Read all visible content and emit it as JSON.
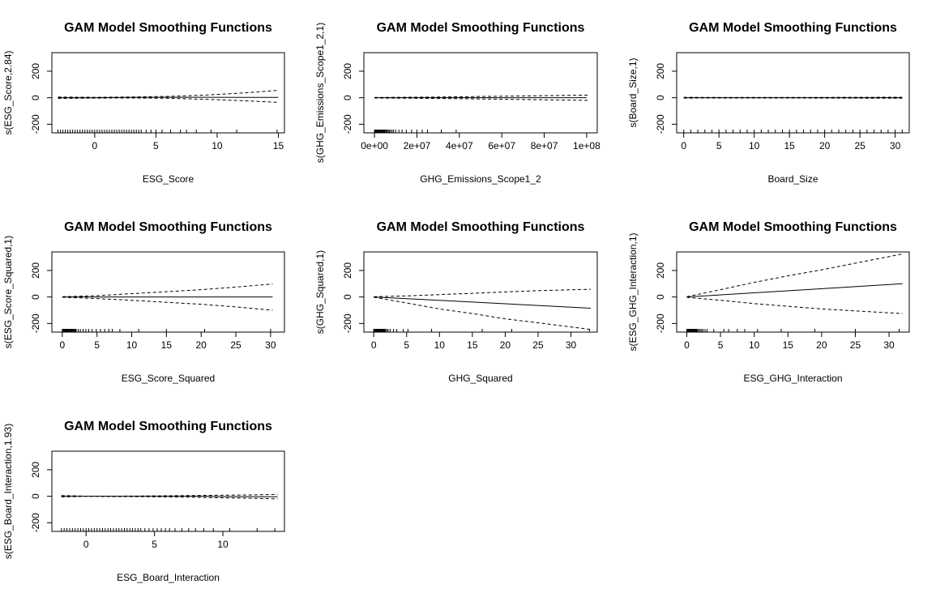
{
  "chart_data": [
    {
      "type": "line",
      "title": "GAM Model Smoothing Functions",
      "xlabel": "ESG_Score",
      "ylabel": "s(ESG_Score,2.84)",
      "xlim": [
        -3.5,
        15.5
      ],
      "ylim": [
        -265,
        340
      ],
      "xticks": [
        0,
        5,
        10,
        15
      ],
      "xtick_labels": [
        "0",
        "5",
        "10",
        "15"
      ],
      "yticks": [
        -200,
        0,
        200
      ],
      "ytick_labels": [
        "-200",
        "0",
        "200"
      ],
      "series": [
        {
          "name": "fit",
          "style": "solid",
          "x": [
            -3,
            0,
            3,
            6,
            9,
            12,
            15
          ],
          "y": [
            0,
            0,
            2,
            3,
            3,
            2,
            2
          ]
        },
        {
          "name": "upper",
          "style": "dashed",
          "x": [
            -3,
            0,
            3,
            6,
            9,
            12,
            15
          ],
          "y": [
            5,
            3,
            6,
            10,
            20,
            35,
            55
          ]
        },
        {
          "name": "lower",
          "style": "dashed",
          "x": [
            -3,
            0,
            3,
            6,
            9,
            12,
            15
          ],
          "y": [
            -5,
            -3,
            -2,
            -4,
            -12,
            -22,
            -35
          ]
        }
      ],
      "rug": [
        -3,
        -2.8,
        -2.6,
        -2.4,
        -2.2,
        -2,
        -1.8,
        -1.6,
        -1.4,
        -1.2,
        -1,
        -0.8,
        -0.6,
        -0.4,
        -0.2,
        0,
        0.2,
        0.4,
        0.6,
        0.8,
        1,
        1.2,
        1.4,
        1.6,
        1.8,
        2,
        2.2,
        2.4,
        2.6,
        2.8,
        3,
        3.2,
        3.4,
        3.6,
        3.8,
        4.2,
        4.6,
        5,
        5.5,
        6.2,
        7,
        7.5,
        8.3,
        9.5,
        11.6,
        14.9
      ]
    },
    {
      "type": "line",
      "title": "GAM Model Smoothing Functions",
      "xlabel": "GHG_Emissions_Scope1_2",
      "ylabel": "s(GHG_Emissions_Scope1_2,1)",
      "xlim": [
        -5000000,
        105000000
      ],
      "ylim": [
        -265,
        340
      ],
      "xticks": [
        0,
        20000000,
        40000000,
        60000000,
        80000000,
        100000000
      ],
      "xtick_labels": [
        "0e+00",
        "2e+07",
        "4e+07",
        "6e+07",
        "8e+07",
        "1e+08"
      ],
      "yticks": [
        -200,
        0,
        200
      ],
      "ytick_labels": [
        "-200",
        "0",
        "200"
      ],
      "series": [
        {
          "name": "fit",
          "style": "solid",
          "x": [
            0,
            100000000
          ],
          "y": [
            0,
            0
          ]
        },
        {
          "name": "upper",
          "style": "dashed",
          "x": [
            0,
            30000000,
            101000000
          ],
          "y": [
            2,
            5,
            20
          ]
        },
        {
          "name": "lower",
          "style": "dashed",
          "x": [
            0,
            30000000,
            101000000
          ],
          "y": [
            -2,
            -5,
            -20
          ]
        }
      ],
      "rug": [
        0,
        300000,
        600000,
        900000,
        1200000,
        1500000,
        1800000,
        2100000,
        2400000,
        2700000,
        3000000,
        3300000,
        3600000,
        3900000,
        4200000,
        4500000,
        4800000,
        5200000,
        5600000,
        6000000,
        6500000,
        7000000,
        7600000,
        8300000,
        9000000,
        10000000,
        11500000,
        13000000,
        15000000,
        17500000,
        20000000,
        22500000,
        25000000,
        31500000,
        38500000
      ]
    },
    {
      "type": "line",
      "title": "GAM Model Smoothing Functions",
      "xlabel": "Board_Size",
      "ylabel": "s(Board_Size,1)",
      "xlim": [
        -1,
        32
      ],
      "ylim": [
        -265,
        340
      ],
      "xticks": [
        0,
        5,
        10,
        15,
        20,
        25,
        30
      ],
      "xtick_labels": [
        "0",
        "5",
        "10",
        "15",
        "20",
        "25",
        "30"
      ],
      "yticks": [
        -200,
        0,
        200
      ],
      "ytick_labels": [
        "-200",
        "0",
        "200"
      ],
      "series": [
        {
          "name": "fit",
          "style": "solid",
          "x": [
            0,
            31
          ],
          "y": [
            0,
            0
          ]
        },
        {
          "name": "upper",
          "style": "dashed",
          "x": [
            0,
            4,
            15,
            31
          ],
          "y": [
            3,
            2,
            2,
            4
          ]
        },
        {
          "name": "lower",
          "style": "dashed",
          "x": [
            0,
            4,
            15,
            31
          ],
          "y": [
            -3,
            -2,
            -2,
            -4
          ]
        }
      ],
      "rug": [
        0,
        1,
        2,
        3,
        4,
        5,
        6,
        7,
        8,
        9,
        10,
        11,
        12,
        13,
        14,
        15,
        16,
        17,
        18,
        19,
        20,
        21,
        22,
        23,
        24,
        25,
        26,
        27,
        28,
        29,
        30,
        31
      ]
    },
    {
      "type": "line",
      "title": "GAM Model Smoothing Functions",
      "xlabel": "ESG_Score_Squared",
      "ylabel": "s(ESG_Score_Squared,1)",
      "xlim": [
        -1.5,
        32
      ],
      "ylim": [
        -265,
        340
      ],
      "xticks": [
        0,
        5,
        10,
        15,
        20,
        25,
        30
      ],
      "xtick_labels": [
        "0",
        "5",
        "10",
        "15",
        "20",
        "25",
        "30"
      ],
      "yticks": [
        -200,
        0,
        200
      ],
      "ytick_labels": [
        "-200",
        "0",
        "200"
      ],
      "series": [
        {
          "name": "fit",
          "style": "solid",
          "x": [
            0,
            30.3
          ],
          "y": [
            0,
            0
          ]
        },
        {
          "name": "upper",
          "style": "dashed",
          "x": [
            0,
            5,
            10,
            15,
            20,
            25,
            30.3
          ],
          "y": [
            2,
            10,
            25,
            40,
            55,
            75,
            98
          ]
        },
        {
          "name": "lower",
          "style": "dashed",
          "x": [
            0,
            5,
            10,
            15,
            20,
            25,
            30.3
          ],
          "y": [
            -2,
            -12,
            -25,
            -40,
            -55,
            -75,
            -100
          ]
        }
      ],
      "rug": [
        0,
        0.1,
        0.2,
        0.3,
        0.4,
        0.5,
        0.6,
        0.7,
        0.8,
        0.9,
        1,
        1.1,
        1.2,
        1.3,
        1.4,
        1.5,
        1.6,
        1.7,
        1.8,
        1.9,
        2,
        2.3,
        2.6,
        3,
        3.4,
        3.8,
        4.3,
        4.9,
        5.5,
        6.1,
        6.7,
        7.2,
        8.3,
        11,
        15,
        20.5,
        30
      ]
    },
    {
      "type": "line",
      "title": "GAM Model Smoothing Functions",
      "xlabel": "GHG_Squared",
      "ylabel": "s(GHG_Squared,1)",
      "xlim": [
        -1.5,
        34
      ],
      "ylim": [
        -265,
        340
      ],
      "xticks": [
        0,
        5,
        10,
        15,
        20,
        25,
        30
      ],
      "xtick_labels": [
        "0",
        "5",
        "10",
        "15",
        "20",
        "25",
        "30"
      ],
      "yticks": [
        -200,
        0,
        200
      ],
      "ytick_labels": [
        "-200",
        "0",
        "200"
      ],
      "series": [
        {
          "name": "fit",
          "style": "solid",
          "x": [
            0,
            33
          ],
          "y": [
            0,
            -85
          ]
        },
        {
          "name": "upper",
          "style": "dashed",
          "x": [
            0,
            5,
            10,
            15,
            20,
            25,
            33
          ],
          "y": [
            2,
            8,
            18,
            28,
            38,
            48,
            58
          ]
        },
        {
          "name": "lower",
          "style": "dashed",
          "x": [
            0,
            5,
            10,
            15,
            20,
            25,
            33
          ],
          "y": [
            -2,
            -45,
            -90,
            -125,
            -165,
            -195,
            -245
          ]
        }
      ],
      "rug": [
        0,
        0.1,
        0.2,
        0.3,
        0.4,
        0.5,
        0.6,
        0.7,
        0.8,
        0.9,
        1,
        1.1,
        1.2,
        1.3,
        1.4,
        1.5,
        1.6,
        1.7,
        1.8,
        2,
        2.2,
        2.5,
        3,
        3.5,
        4.5,
        5.2,
        8.8,
        16.5,
        21,
        32.8
      ]
    },
    {
      "type": "line",
      "title": "GAM Model Smoothing Functions",
      "xlabel": "ESG_GHG_Interaction",
      "ylabel": "s(ESG_GHG_Interaction,1)",
      "xlim": [
        -1.5,
        33
      ],
      "ylim": [
        -265,
        340
      ],
      "xticks": [
        0,
        5,
        10,
        15,
        20,
        25,
        30
      ],
      "xtick_labels": [
        "0",
        "5",
        "10",
        "15",
        "20",
        "25",
        "30"
      ],
      "yticks": [
        -200,
        0,
        200
      ],
      "ytick_labels": [
        "-200",
        "0",
        "200"
      ],
      "series": [
        {
          "name": "fit",
          "style": "solid",
          "x": [
            0,
            32
          ],
          "y": [
            0,
            100
          ]
        },
        {
          "name": "upper",
          "style": "dashed",
          "x": [
            0,
            5,
            10,
            15,
            20,
            25,
            32
          ],
          "y": [
            2,
            55,
            110,
            160,
            205,
            255,
            325
          ]
        },
        {
          "name": "lower",
          "style": "dashed",
          "x": [
            0,
            5,
            10,
            15,
            20,
            25,
            32
          ],
          "y": [
            -2,
            -25,
            -50,
            -70,
            -90,
            -105,
            -125
          ]
        }
      ],
      "rug": [
        0,
        0.1,
        0.2,
        0.3,
        0.4,
        0.5,
        0.6,
        0.7,
        0.8,
        0.9,
        1,
        1.1,
        1.2,
        1.3,
        1.4,
        1.5,
        1.6,
        1.8,
        2,
        2.2,
        2.4,
        2.7,
        3,
        4,
        5.5,
        6.2,
        7.5,
        8.6,
        10.5,
        14,
        19,
        25,
        31.5
      ]
    },
    {
      "type": "line",
      "title": "GAM Model Smoothing Functions",
      "xlabel": "ESG_Board_Interaction",
      "ylabel": "s(ESG_Board_Interaction,1.93)",
      "xlim": [
        -2.5,
        14.5
      ],
      "ylim": [
        -265,
        340
      ],
      "xticks": [
        0,
        5,
        10
      ],
      "xtick_labels": [
        "0",
        "5",
        "10"
      ],
      "yticks": [
        -200,
        0,
        200
      ],
      "ytick_labels": [
        "-200",
        "0",
        "200"
      ],
      "series": [
        {
          "name": "fit",
          "style": "solid",
          "x": [
            -1.8,
            0,
            2,
            4,
            6,
            8,
            10,
            12,
            14
          ],
          "y": [
            0,
            0,
            0,
            0,
            0,
            0,
            -2,
            -3,
            -4
          ]
        },
        {
          "name": "upper",
          "style": "dashed",
          "x": [
            -1.8,
            -0.8,
            0,
            2,
            4,
            6,
            8,
            10,
            12,
            14
          ],
          "y": [
            5,
            3,
            0,
            1,
            2,
            4,
            6,
            8,
            10,
            14
          ]
        },
        {
          "name": "lower",
          "style": "dashed",
          "x": [
            -1.8,
            -0.8,
            0,
            2,
            4,
            6,
            8,
            10,
            12,
            14
          ],
          "y": [
            -5,
            -3,
            0,
            -2,
            -3,
            -5,
            -8,
            -12,
            -15,
            -20
          ]
        }
      ],
      "rug": [
        -1.8,
        -1.6,
        -1.4,
        -1.2,
        -1,
        -0.8,
        -0.6,
        -0.4,
        -0.2,
        0,
        0.2,
        0.4,
        0.6,
        0.8,
        1,
        1.2,
        1.4,
        1.6,
        1.8,
        2,
        2.2,
        2.4,
        2.6,
        2.8,
        3,
        3.2,
        3.4,
        3.6,
        3.8,
        4,
        4.3,
        4.6,
        4.9,
        5.2,
        5.5,
        5.8,
        6.1,
        6.5,
        7,
        7.5,
        8,
        8.6,
        9.3,
        10.5,
        12.5,
        13.8
      ]
    }
  ]
}
